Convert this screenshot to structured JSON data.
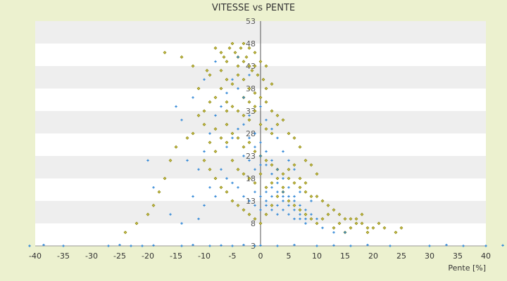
{
  "chart_data": {
    "type": "scatter",
    "title": "VITESSE vs PENTE",
    "xlabel": "Pente [%]",
    "ylabel": "",
    "xlim": [
      -40,
      43
    ],
    "ylim": [
      3,
      53
    ],
    "x_ticks": [
      -40,
      -35,
      -30,
      -25,
      -20,
      -15,
      -10,
      -5,
      0,
      5,
      10,
      15,
      20,
      25,
      30,
      35,
      40
    ],
    "y_ticks": [
      3,
      8,
      13,
      18,
      23,
      28,
      33,
      38,
      43,
      48,
      53
    ],
    "y_tick_labels_visible": [
      "3",
      "8",
      "13",
      "18",
      "23",
      "28",
      "33",
      "38",
      "43",
      "48",
      "53"
    ],
    "grid": "alternating horizontal bands",
    "series": [
      {
        "color": "#808000",
        "marker": "diamond",
        "points": [
          [
            -17,
            46
          ],
          [
            -14,
            45
          ],
          [
            -12,
            43
          ],
          [
            -9.5,
            42
          ],
          [
            -8,
            47
          ],
          [
            -7,
            46
          ],
          [
            -6.5,
            45
          ],
          [
            -6,
            44
          ],
          [
            -5.5,
            47
          ],
          [
            -5,
            48
          ],
          [
            -4.5,
            46
          ],
          [
            -4,
            45
          ],
          [
            -3.5,
            47
          ],
          [
            -3,
            44
          ],
          [
            -2.5,
            45
          ],
          [
            -2,
            43
          ],
          [
            -1.5,
            42
          ],
          [
            -1,
            43
          ],
          [
            -0.5,
            41
          ],
          [
            0.5,
            40
          ],
          [
            1,
            38
          ],
          [
            -6,
            40
          ],
          [
            -5,
            39
          ],
          [
            -4,
            41
          ],
          [
            -3,
            40
          ],
          [
            -2,
            38
          ],
          [
            -1,
            37
          ],
          [
            -7,
            38
          ],
          [
            -8,
            36
          ],
          [
            -9,
            35
          ],
          [
            -10,
            33
          ],
          [
            -11,
            32
          ],
          [
            -6,
            35
          ],
          [
            -5,
            34
          ],
          [
            -4,
            33
          ],
          [
            -3,
            32
          ],
          [
            -2,
            31
          ],
          [
            -1,
            33
          ],
          [
            0,
            30
          ],
          [
            1,
            29
          ],
          [
            2,
            28
          ],
          [
            3,
            30
          ],
          [
            -12,
            28
          ],
          [
            -13,
            27
          ],
          [
            -8,
            29
          ],
          [
            -7,
            27
          ],
          [
            -6,
            26
          ],
          [
            -5,
            28
          ],
          [
            -4,
            27
          ],
          [
            -3,
            25
          ],
          [
            -2,
            26
          ],
          [
            -1,
            24
          ],
          [
            0,
            23
          ],
          [
            1,
            22
          ],
          [
            2,
            21
          ],
          [
            3,
            20
          ],
          [
            4,
            19
          ],
          [
            5,
            18
          ],
          [
            6,
            17
          ],
          [
            7,
            16
          ],
          [
            8,
            15
          ],
          [
            9,
            14
          ],
          [
            10,
            14
          ],
          [
            11,
            13
          ],
          [
            12,
            12
          ],
          [
            13,
            11
          ],
          [
            14,
            10
          ],
          [
            15,
            9
          ],
          [
            16,
            9
          ],
          [
            17,
            8
          ],
          [
            18,
            8
          ],
          [
            19,
            7
          ],
          [
            20,
            7
          ],
          [
            21,
            8
          ],
          [
            22,
            7
          ],
          [
            24,
            6
          ],
          [
            25,
            7
          ],
          [
            -15,
            25
          ],
          [
            -16,
            22
          ],
          [
            -17,
            18
          ],
          [
            -18,
            15
          ],
          [
            -19,
            12
          ],
          [
            -20,
            10
          ],
          [
            -22,
            8
          ],
          [
            -24,
            6
          ],
          [
            -10,
            22
          ],
          [
            -9,
            20
          ],
          [
            -8,
            18
          ],
          [
            -7,
            16
          ],
          [
            -6,
            15
          ],
          [
            -5,
            13
          ],
          [
            -4,
            12
          ],
          [
            -3,
            11
          ],
          [
            -2,
            10
          ],
          [
            -1,
            9
          ],
          [
            0,
            8
          ],
          [
            1,
            10
          ],
          [
            2,
            12
          ],
          [
            3,
            14
          ],
          [
            4,
            15
          ],
          [
            5,
            13
          ],
          [
            6,
            12
          ],
          [
            7,
            11
          ],
          [
            8,
            10
          ],
          [
            9,
            9
          ],
          [
            10,
            8
          ],
          [
            11,
            9
          ],
          [
            12,
            10
          ],
          [
            13,
            7
          ],
          [
            14,
            8
          ],
          [
            15,
            6
          ],
          [
            16,
            7
          ],
          [
            17,
            9
          ],
          [
            18,
            10
          ],
          [
            19,
            6
          ],
          [
            -3,
            36
          ],
          [
            -2,
            35
          ],
          [
            -1,
            34
          ],
          [
            0,
            36
          ],
          [
            1,
            35
          ],
          [
            2,
            33
          ],
          [
            3,
            32
          ],
          [
            4,
            31
          ],
          [
            5,
            28
          ],
          [
            6,
            27
          ],
          [
            7,
            25
          ],
          [
            8,
            22
          ],
          [
            9,
            21
          ],
          [
            10,
            19
          ],
          [
            -11,
            38
          ],
          [
            -9,
            41
          ],
          [
            -7,
            42
          ],
          [
            -6,
            30
          ],
          [
            -5,
            22
          ],
          [
            -4,
            20
          ],
          [
            -3,
            19
          ],
          [
            -2,
            18
          ],
          [
            -1,
            17
          ],
          [
            0,
            19
          ],
          [
            1,
            16
          ],
          [
            2,
            17
          ],
          [
            3,
            18
          ],
          [
            4,
            16
          ],
          [
            5,
            20
          ],
          [
            6,
            21
          ],
          [
            7,
            18
          ],
          [
            8,
            17
          ],
          [
            -8,
            24
          ],
          [
            -9,
            26
          ],
          [
            -10,
            30
          ],
          [
            -6,
            33
          ],
          [
            2,
            39
          ],
          [
            1,
            43
          ],
          [
            -1,
            46
          ],
          [
            -3,
            48
          ],
          [
            -4,
            43
          ],
          [
            -2,
            47
          ],
          [
            0,
            44
          ]
        ]
      },
      {
        "color": "#2f86d6",
        "marker": "cross",
        "points": [
          [
            -41,
            3
          ],
          [
            -38.5,
            3.2
          ],
          [
            -35,
            3
          ],
          [
            -27,
            3
          ],
          [
            -25,
            3.2
          ],
          [
            -23,
            3
          ],
          [
            -21,
            3
          ],
          [
            -19,
            3.1
          ],
          [
            -14,
            3
          ],
          [
            -12,
            3.2
          ],
          [
            -9,
            3
          ],
          [
            -7,
            3.1
          ],
          [
            -5,
            3
          ],
          [
            -3,
            3.2
          ],
          [
            -1,
            3
          ],
          [
            0,
            3.1
          ],
          [
            3,
            3
          ],
          [
            6,
            3.2
          ],
          [
            10,
            3
          ],
          [
            13,
            3.1
          ],
          [
            16,
            3
          ],
          [
            19,
            3.2
          ],
          [
            23,
            3
          ],
          [
            30,
            3
          ],
          [
            33,
            3.2
          ],
          [
            36,
            3
          ],
          [
            40,
            3
          ],
          [
            43,
            3.1
          ],
          [
            -20,
            22
          ],
          [
            -19,
            16
          ],
          [
            -16,
            10
          ],
          [
            -14,
            8
          ],
          [
            -12,
            14
          ],
          [
            -11,
            20
          ],
          [
            -10,
            24
          ],
          [
            -9,
            28
          ],
          [
            -8,
            32
          ],
          [
            -7,
            34
          ],
          [
            -6,
            37
          ],
          [
            -5,
            40
          ],
          [
            -4,
            38
          ],
          [
            -3,
            36
          ],
          [
            -2,
            32
          ],
          [
            -1,
            28
          ],
          [
            0,
            26
          ],
          [
            1,
            24
          ],
          [
            2,
            22
          ],
          [
            3,
            20
          ],
          [
            4,
            18
          ],
          [
            5,
            16
          ],
          [
            6,
            14
          ],
          [
            7,
            12
          ],
          [
            8,
            11
          ],
          [
            9,
            10
          ],
          [
            10,
            9
          ],
          [
            -6,
            25
          ],
          [
            -5,
            27
          ],
          [
            -4,
            29
          ],
          [
            -3,
            30
          ],
          [
            -2,
            27
          ],
          [
            -1,
            25
          ],
          [
            0,
            23
          ],
          [
            1,
            21
          ],
          [
            2,
            19
          ],
          [
            3,
            17
          ],
          [
            4,
            15
          ],
          [
            5,
            14
          ],
          [
            6,
            13
          ],
          [
            7,
            10
          ],
          [
            8,
            9
          ],
          [
            -7,
            20
          ],
          [
            -6,
            18
          ],
          [
            -5,
            17
          ],
          [
            -4,
            16
          ],
          [
            -3,
            14
          ],
          [
            -2,
            13
          ],
          [
            -1,
            12
          ],
          [
            0,
            11
          ],
          [
            1,
            13
          ],
          [
            2,
            14
          ],
          [
            3,
            15
          ],
          [
            4,
            13
          ],
          [
            5,
            12
          ],
          [
            6,
            11
          ],
          [
            7,
            9
          ],
          [
            8,
            8
          ],
          [
            -9,
            16
          ],
          [
            -8,
            14
          ],
          [
            -10,
            12
          ],
          [
            -11,
            9
          ],
          [
            -13,
            22
          ],
          [
            -15,
            34
          ],
          [
            -14,
            31
          ],
          [
            -12,
            36
          ],
          [
            -10,
            40
          ],
          [
            -8,
            44
          ],
          [
            -4,
            45
          ],
          [
            -2,
            41
          ],
          [
            0,
            34
          ],
          [
            1,
            31
          ],
          [
            2,
            29
          ],
          [
            3,
            27
          ],
          [
            4,
            24
          ],
          [
            5,
            22
          ],
          [
            6,
            20
          ],
          [
            1,
            15
          ],
          [
            2,
            11
          ],
          [
            3,
            10
          ],
          [
            4,
            11
          ],
          [
            5,
            10
          ],
          [
            6,
            9
          ],
          [
            -1,
            20
          ],
          [
            0,
            21
          ],
          [
            -2,
            22
          ],
          [
            -3,
            23
          ],
          [
            2,
            16
          ],
          [
            3,
            12
          ],
          [
            4,
            14
          ],
          [
            1,
            12
          ],
          [
            0,
            14
          ],
          [
            -1,
            15
          ],
          [
            7,
            15
          ],
          [
            9,
            13
          ],
          [
            11,
            7
          ],
          [
            13,
            6
          ],
          [
            15,
            6
          ]
        ]
      }
    ]
  }
}
